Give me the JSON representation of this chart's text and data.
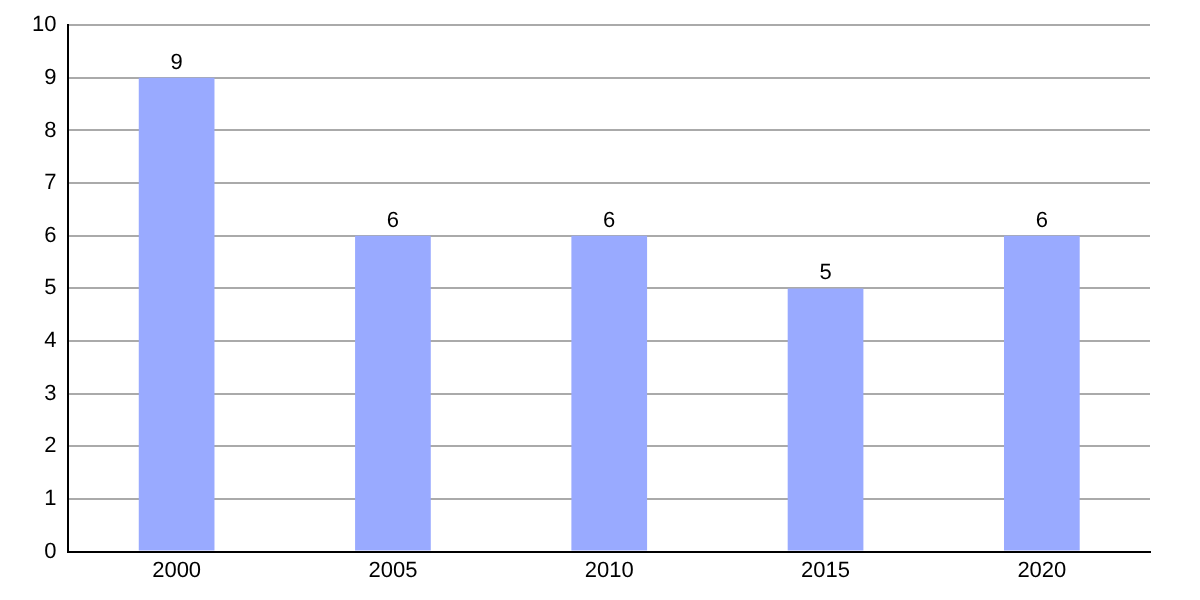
{
  "chart_data": {
    "type": "bar",
    "categories": [
      "2000",
      "2005",
      "2010",
      "2015",
      "2020"
    ],
    "values": [
      9,
      6,
      6,
      5,
      6
    ],
    "color": "#99aaff",
    "ylim": [
      0,
      10
    ],
    "yticks": [
      0,
      1,
      2,
      3,
      4,
      5,
      6,
      7,
      8,
      9,
      10
    ],
    "grid": "y",
    "data_labels": true,
    "legend": false
  }
}
